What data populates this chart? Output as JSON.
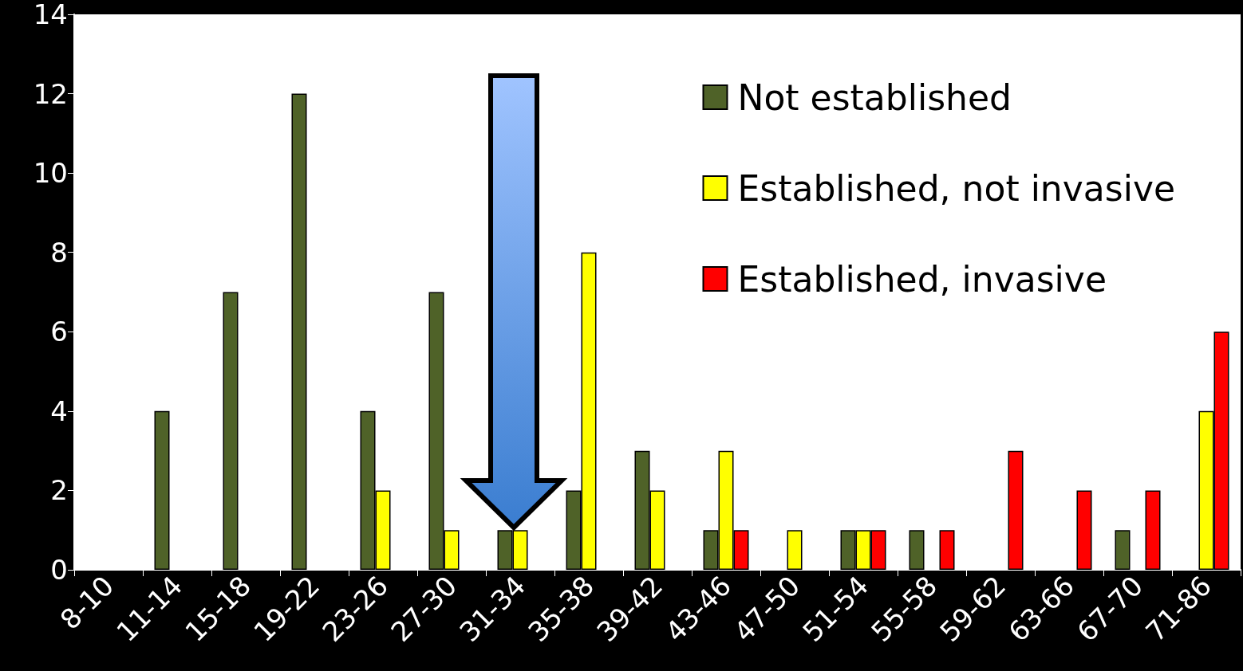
{
  "chart_data": {
    "type": "bar",
    "categories": [
      "8-10",
      "11-14",
      "15-18",
      "19-22",
      "23-26",
      "27-30",
      "31-34",
      "35-38",
      "39-42",
      "43-46",
      "47-50",
      "51-54",
      "55-58",
      "59-62",
      "63-66",
      "67-70",
      "71-86"
    ],
    "series": [
      {
        "name": "Not established",
        "color": "#4f6228",
        "values": [
          null,
          4,
          7,
          12,
          4,
          7,
          1,
          2,
          3,
          1,
          null,
          1,
          1,
          null,
          null,
          1,
          null
        ]
      },
      {
        "name": "Established, not invasive",
        "color": "#ffff00",
        "values": [
          null,
          null,
          null,
          null,
          2,
          1,
          1,
          8,
          2,
          3,
          1,
          1,
          null,
          null,
          null,
          null,
          4
        ]
      },
      {
        "name": "Established, invasive",
        "color": "#ff0000",
        "values": [
          null,
          null,
          null,
          null,
          null,
          null,
          null,
          null,
          null,
          1,
          null,
          1,
          1,
          3,
          2,
          2,
          6
        ]
      }
    ],
    "ylim": [
      0,
      14
    ],
    "yticks": [
      0,
      2,
      4,
      6,
      8,
      10,
      12,
      14
    ],
    "grid": false,
    "legend": "top right"
  }
}
